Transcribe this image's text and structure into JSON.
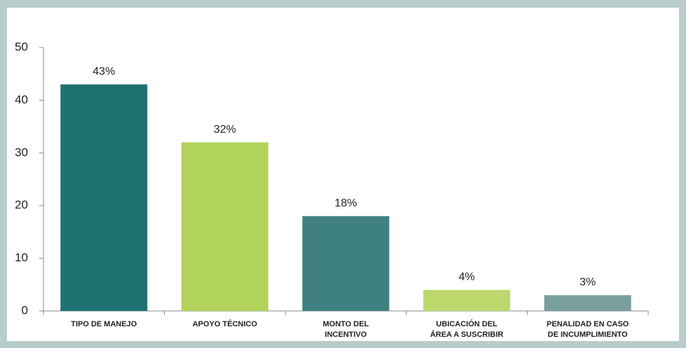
{
  "chart_data": {
    "type": "bar",
    "categories": [
      "TIPO DE MANEJO",
      "APOYO TÉCNICO",
      "MONTO DEL INCENTIVO",
      "UBICACIÓN DEL ÁREA A SUSCRIBIR",
      "PENALIDAD EN CASO DE INCUMPLIMIENTO"
    ],
    "values": [
      43,
      32,
      18,
      4,
      3
    ],
    "value_labels": [
      "43%",
      "32%",
      "18%",
      "4%",
      "3%"
    ],
    "colors": [
      "#1f7272",
      "#b1d35b",
      "#3f8080",
      "#bcd76b",
      "#7a9f9f"
    ],
    "ylim": [
      0,
      50
    ],
    "yticks": [
      0,
      10,
      20,
      30,
      40,
      50
    ]
  }
}
